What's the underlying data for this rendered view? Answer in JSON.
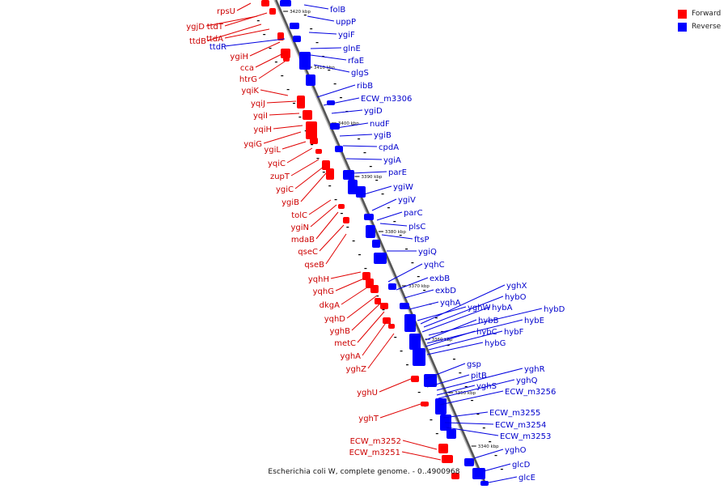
{
  "colors": {
    "forward": "#ff0000",
    "reverse": "#0000ff",
    "forward_label": "#cc0000",
    "reverse_label": "#0000cc",
    "backbone": "#888888"
  },
  "legend": {
    "forward": "Forward",
    "reverse": "Reverse"
  },
  "footer": "Escherichia coli W, complete genome. - 0..4900968",
  "ticks": [
    "3420 kbp",
    "3410 kbp",
    "3400 kbp",
    "3390 kbp",
    "3380 kbp",
    "3370 kbp",
    "3360 kbp",
    "3350 kbp",
    "3340 kbp"
  ],
  "forward_genes": [
    "rpsU",
    "ygjD",
    "ttdT",
    "ttdB",
    "ttdA",
    "ygiH",
    "cca",
    "htrG",
    "yqiK",
    "yqiJ",
    "yqiI",
    "yqiH",
    "yqiG",
    "ygiL",
    "yqiC",
    "zupT",
    "ygiC",
    "ygiB",
    "tolC",
    "ygiN",
    "mdaB",
    "qseC",
    "qseB",
    "yqhH",
    "yqhG",
    "dkgA",
    "yqhD",
    "yghB",
    "metC",
    "yghA",
    "yghZ",
    "yghU",
    "yghT",
    "ECW_m3252",
    "ECW_m3251"
  ],
  "reverse_genes": [
    "folB",
    "uppP",
    "ygiF",
    "ttdR",
    "glnE",
    "rfaE",
    "glgS",
    "ribB",
    "ECW_m3306",
    "ygiD",
    "nudF",
    "ygiB",
    "cpdA",
    "ygiA",
    "parE",
    "ygiW",
    "ygiV",
    "parC",
    "plsC",
    "ftsP",
    "ygiQ",
    "yqhC",
    "exbB",
    "exbD",
    "yqhA",
    "yghX",
    "hybO",
    "yghW",
    "hybA",
    "hybD",
    "hybB",
    "hybE",
    "hybC",
    "hybF",
    "hybG",
    "gsp",
    "pitB",
    "yghR",
    "yghS",
    "yghQ",
    "ECW_m3256",
    "ECW_m3255",
    "ECW_m3254",
    "ECW_m3253",
    "yghO",
    "glcD",
    "glcE"
  ]
}
